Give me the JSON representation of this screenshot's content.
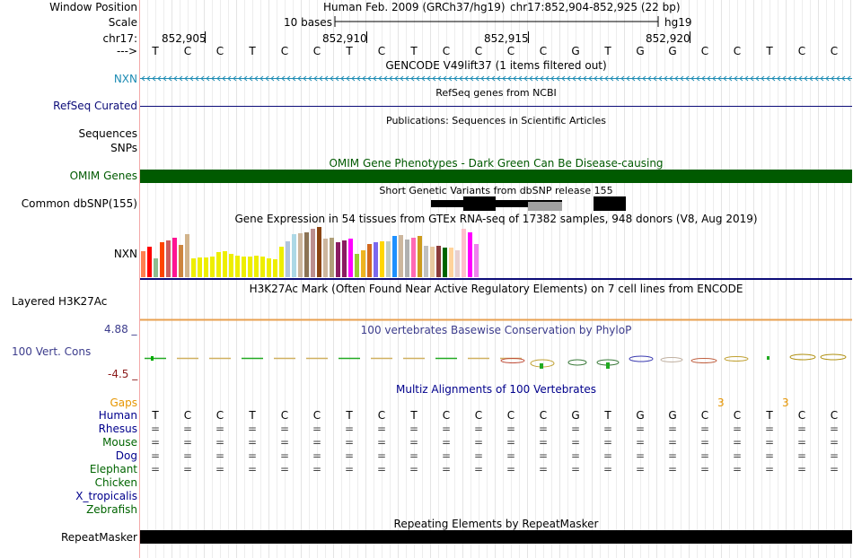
{
  "position": {
    "window_label": "Window Position",
    "scale_label": "Scale",
    "chrom_label": "chr17:",
    "arrow_label": "--->",
    "assembly_title": "Human Feb. 2009 (GRCh37/hg19)",
    "coords": "chr17:852,904-852,925 (22 bp)",
    "scale_text": "10 bases",
    "db": "hg19",
    "ticks": [
      "852,905",
      "852,910",
      "852,915",
      "852,920"
    ],
    "sequence": [
      "T",
      "C",
      "C",
      "T",
      "C",
      "C",
      "T",
      "C",
      "T",
      "C",
      "C",
      "C",
      "C",
      "G",
      "T",
      "G",
      "G",
      "C",
      "C",
      "T",
      "C",
      "C"
    ]
  },
  "tracks": {
    "gencode": {
      "title": "GENCODE V49lift37 (1 items filtered out)",
      "label": "NXN",
      "color": "#1e8cb4"
    },
    "refseq": {
      "title": "RefSeq genes from NCBI",
      "label": "RefSeq Curated",
      "color": "#0c0c78"
    },
    "publications": {
      "title": "Publications: Sequences in Scientific Articles",
      "label_a": "Sequences",
      "label_b": "SNPs"
    },
    "omim": {
      "title": "OMIM Gene Phenotypes - Dark Green Can Be Disease-causing",
      "label": "OMIM Genes",
      "color": "#005a00"
    },
    "dbsnp": {
      "title": "Short Genetic Variants from dbSNP release 155",
      "label": "Common dbSNP(155)"
    },
    "gtex": {
      "title": "Gene Expression in 54 tissues from GTEx RNA-seq of 17382 samples, 948 donors (V8, Aug 2019)",
      "label": "NXN"
    },
    "h3k27ac": {
      "title": "H3K27Ac Mark (Often Found Near Active Regulatory Elements) on 7 cell lines from ENCODE",
      "label": "Layered H3K27Ac"
    },
    "phylop": {
      "title": "100 vertebrates Basewise Conservation by PhyloP",
      "label": "100 Vert. Cons",
      "max": "4.88 _",
      "min": "-4.5 _",
      "color": "#3c3c8c"
    },
    "multiz": {
      "title": "Multiz Alignments of 100 Vertebrates",
      "gaps_label": "Gaps",
      "gap_marks": [
        "3",
        "3"
      ],
      "species": [
        {
          "name": "Human",
          "color": "#00008c"
        },
        {
          "name": "Rhesus",
          "color": "#00008c"
        },
        {
          "name": "Mouse",
          "color": "#006400"
        },
        {
          "name": "Dog",
          "color": "#00008c"
        },
        {
          "name": "Elephant",
          "color": "#006400"
        },
        {
          "name": "Chicken",
          "color": "#006400"
        },
        {
          "name": "X_tropicalis",
          "color": "#00008c"
        },
        {
          "name": "Zebrafish",
          "color": "#006400"
        }
      ],
      "match_char": "="
    },
    "repeatmasker": {
      "title": "Repeating Elements by RepeatMasker",
      "label": "RepeatMasker"
    }
  },
  "chart_data": {
    "type": "bar",
    "title": "Gene Expression in 54 tissues from GTEx RNA-seq of 17382 samples, 948 donors (V8, Aug 2019)",
    "values": [
      29,
      34,
      21,
      39,
      41,
      44,
      36,
      48,
      21,
      22,
      22,
      23,
      28,
      29,
      26,
      24,
      23,
      23,
      24,
      23,
      21,
      20,
      34,
      40,
      48,
      49,
      50,
      54,
      56,
      43,
      44,
      39,
      41,
      43,
      26,
      30,
      37,
      39,
      40,
      40,
      46,
      47,
      42,
      44,
      46,
      35,
      34,
      35,
      33,
      33,
      30,
      54,
      50,
      37
    ],
    "colors": [
      "#ff7f50",
      "#ff0000",
      "#8fbc8f",
      "#ff4500",
      "#cd5c5c",
      "#ff1493",
      "#cd853f",
      "#d2b48c",
      "#eeee00",
      "#eeee00",
      "#eeee00",
      "#eeee00",
      "#eeee00",
      "#eeee00",
      "#eeee00",
      "#eeee00",
      "#eeee00",
      "#eeee00",
      "#eeee00",
      "#eeee00",
      "#eeee00",
      "#eeee00",
      "#eeee00",
      "#b0c4de",
      "#add8e6",
      "#cdb79e",
      "#8b7355",
      "#bc8f8f",
      "#8b4513",
      "#cdb79e",
      "#b0a07a",
      "#8b1c62",
      "#8b1c62",
      "#ff00ff",
      "#9acd32",
      "#eeb422",
      "#d2691e",
      "#7b68ee",
      "#ffd700",
      "#c1cdc1",
      "#1e90ff",
      "#cdb79e",
      "#b0b0b0",
      "#ff69b4",
      "#cd9b1d",
      "#c0c0c0",
      "#e8c8a0",
      "#8b3a3a",
      "#006400",
      "#ffd39b",
      "#e8d0d0",
      "#ffc0cb",
      "#ff00ff",
      "#ee82ee"
    ]
  }
}
